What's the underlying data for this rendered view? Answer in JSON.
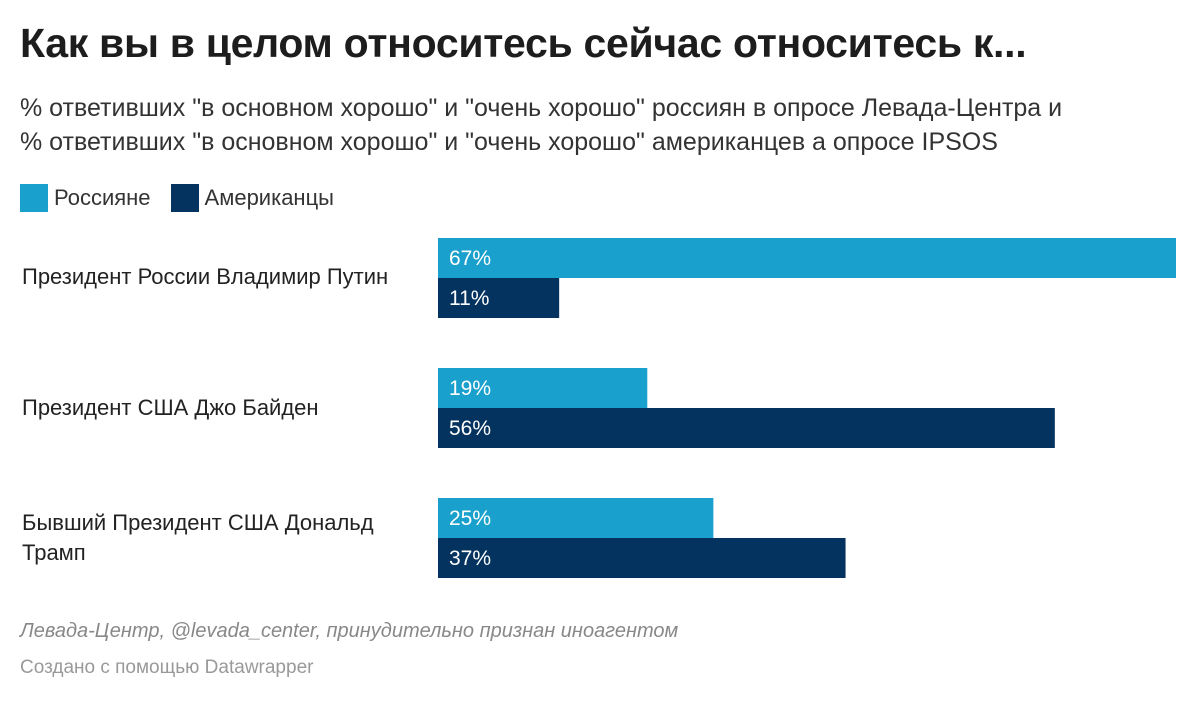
{
  "chart_data": {
    "type": "bar",
    "orientation": "horizontal",
    "title": "Как вы в целом относитесь сейчас относитесь к...",
    "subtitle": [
      "% ответивших \"в основном хорошо\" и \"очень хорошо\" россиян в опросе Левада-Центра и",
      "% ответивших \"в основном хорошо\" и \"очень хорошо\" американцев а опросе IPSOS"
    ],
    "categories": [
      "Президент России Владимир Путин",
      "Президент США Джо Байден",
      "Бывший Президент США Дональд Трамп"
    ],
    "series": [
      {
        "name": "Россияне",
        "color": "#1aa0cc",
        "values": [
          67,
          19,
          25
        ]
      },
      {
        "name": "Американцы",
        "color": "#04335f",
        "values": [
          11,
          56,
          37
        ]
      }
    ],
    "value_suffix": "%",
    "xlim": [
      0,
      67
    ],
    "legend_position": "top-left",
    "grid": false,
    "source": "Левада-Центр, @levada_center, принудительно признан иноагентом",
    "credit": "Создано с помощью Datawrapper"
  }
}
